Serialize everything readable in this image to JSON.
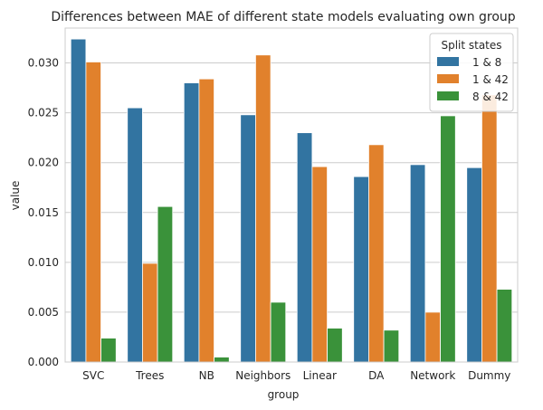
{
  "chart_data": {
    "type": "bar",
    "title": "Differences between MAE of different state models evaluating own group",
    "xlabel": "group",
    "ylabel": "value",
    "categories": [
      "SVC",
      "Trees",
      "NB",
      "Neighbors",
      "Linear",
      "DA",
      "Network",
      "Dummy"
    ],
    "series": [
      {
        "name": "1 & 8",
        "color": "#3274a1",
        "values": [
          0.0324,
          0.0255,
          0.028,
          0.0248,
          0.023,
          0.0186,
          0.0198,
          0.0195
        ]
      },
      {
        "name": "1 & 42",
        "color": "#e1812c",
        "values": [
          0.0301,
          0.0099,
          0.0284,
          0.0308,
          0.0196,
          0.0218,
          0.005,
          0.0268
        ]
      },
      {
        "name": "8 & 42",
        "color": "#3a923a",
        "values": [
          0.0024,
          0.0156,
          0.0005,
          0.006,
          0.0034,
          0.0032,
          0.0247,
          0.0073
        ]
      }
    ],
    "ylim": [
      0,
      0.0335
    ],
    "yticks": [
      "0.000",
      "0.005",
      "0.010",
      "0.015",
      "0.020",
      "0.025",
      "0.030"
    ],
    "grid": true,
    "legend": {
      "title": "Split states",
      "placement": "top-right"
    }
  }
}
